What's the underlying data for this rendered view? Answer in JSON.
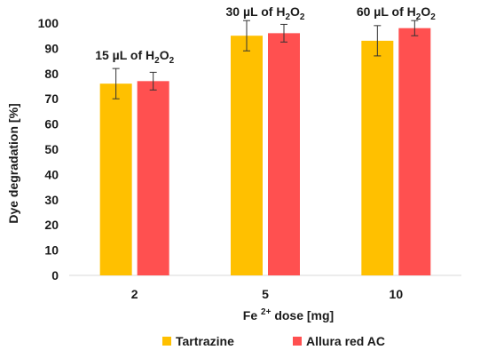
{
  "chart_data": {
    "type": "bar",
    "categories": [
      "2",
      "5",
      "10"
    ],
    "xlabel_main": "Fe",
    "xlabel_sup": "2+",
    "xlabel_rest": " dose  [mg]",
    "ylabel": "Dye degradation [%]",
    "ylim": [
      0,
      100
    ],
    "yticks": [
      "0",
      "10",
      "20",
      "30",
      "40",
      "50",
      "60",
      "70",
      "80",
      "90",
      "100"
    ],
    "grid": false,
    "legend_position": "bottom",
    "series": [
      {
        "name": "Tartrazine",
        "color": "#FFC000",
        "values": [
          76,
          95,
          93
        ],
        "errors": [
          6,
          6,
          6
        ]
      },
      {
        "name": "Allura red AC",
        "color": "#FF5050",
        "values": [
          77,
          96,
          98
        ],
        "errors": [
          3.5,
          3.5,
          3
        ]
      }
    ],
    "annotations": [
      {
        "prefix": "15 µL of H",
        "sub1": "2",
        "mid": "O",
        "sub2": "2"
      },
      {
        "prefix": "30 µL of H",
        "sub1": "2",
        "mid": "O",
        "sub2": "2"
      },
      {
        "prefix": "60 µL of H",
        "sub1": "2",
        "mid": "O",
        "sub2": "2"
      }
    ]
  }
}
